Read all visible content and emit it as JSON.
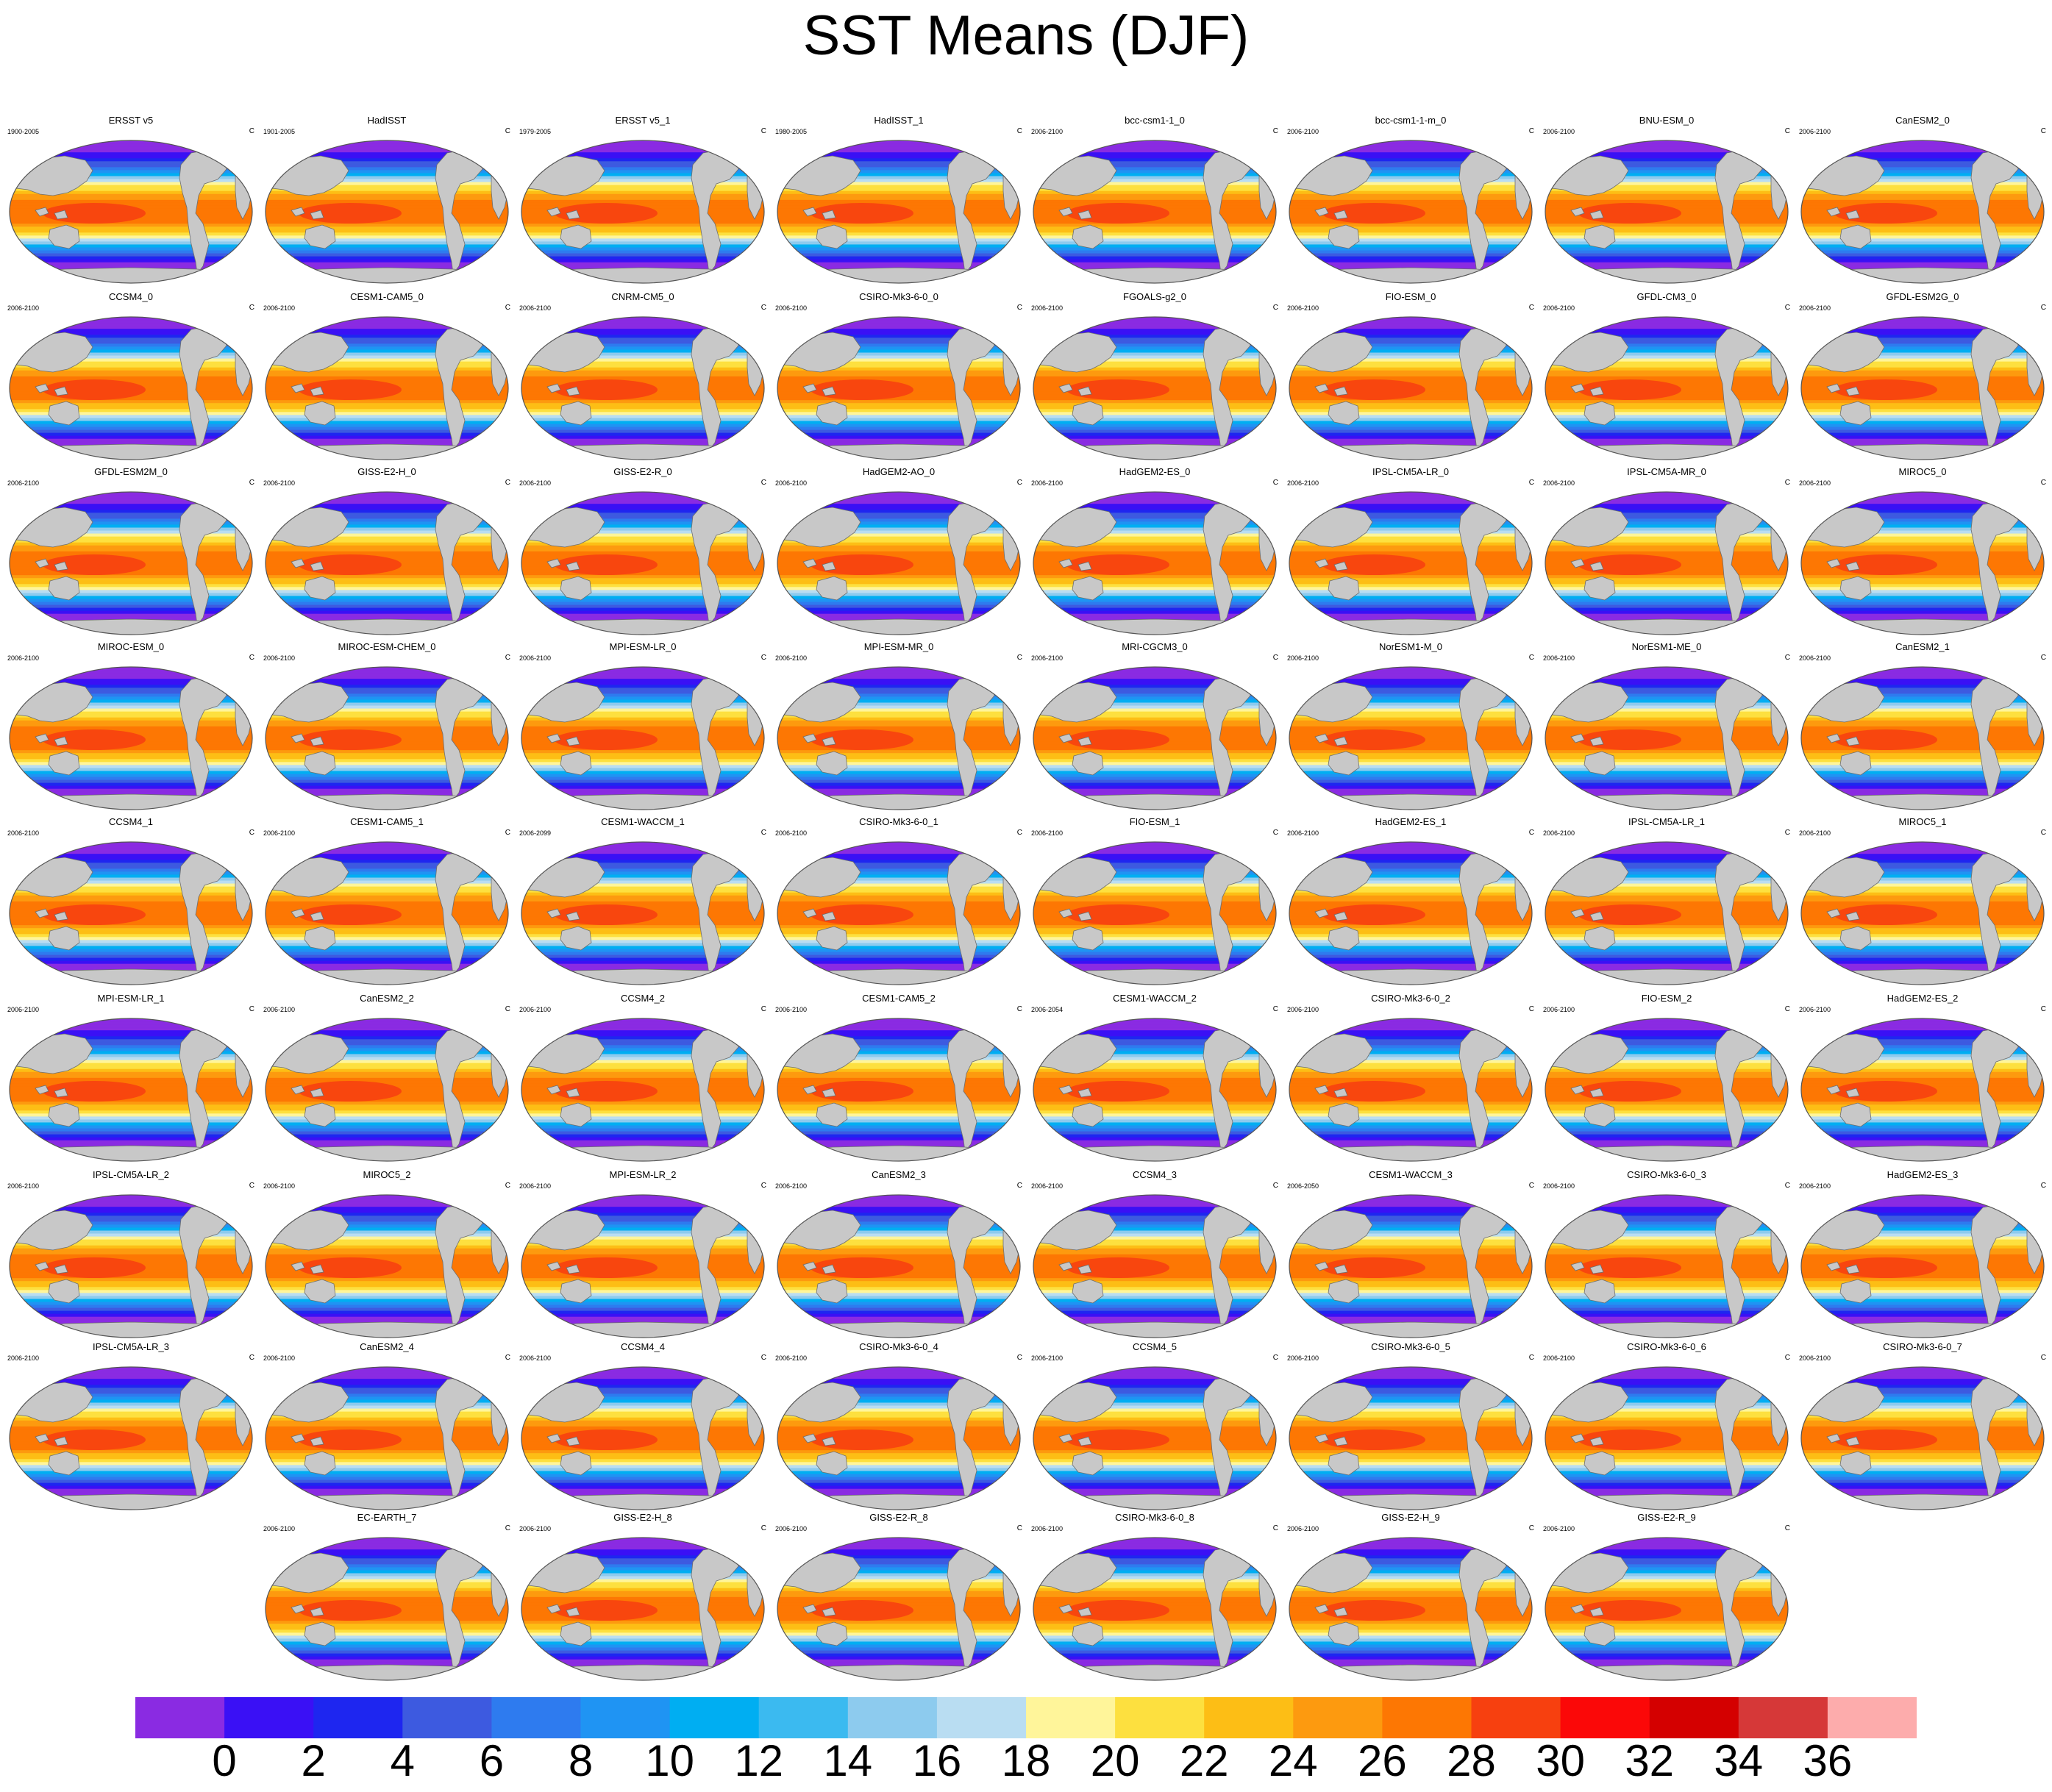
{
  "title": "SST Means (DJF)",
  "units": "C",
  "panels": [
    {
      "name": "ERSST v5",
      "period": "1900-2005"
    },
    {
      "name": "HadISST",
      "period": "1901-2005"
    },
    {
      "name": "ERSST v5_1",
      "period": "1979-2005"
    },
    {
      "name": "HadISST_1",
      "period": "1980-2005"
    },
    {
      "name": "bcc-csm1-1_0",
      "period": "2006-2100"
    },
    {
      "name": "bcc-csm1-1-m_0",
      "period": "2006-2100"
    },
    {
      "name": "BNU-ESM_0",
      "period": "2006-2100"
    },
    {
      "name": "CanESM2_0",
      "period": "2006-2100"
    },
    {
      "name": "CCSM4_0",
      "period": "2006-2100"
    },
    {
      "name": "CESM1-CAM5_0",
      "period": "2006-2100"
    },
    {
      "name": "CNRM-CM5_0",
      "period": "2006-2100"
    },
    {
      "name": "CSIRO-Mk3-6-0_0",
      "period": "2006-2100"
    },
    {
      "name": "FGOALS-g2_0",
      "period": "2006-2100"
    },
    {
      "name": "FIO-ESM_0",
      "period": "2006-2100"
    },
    {
      "name": "GFDL-CM3_0",
      "period": "2006-2100"
    },
    {
      "name": "GFDL-ESM2G_0",
      "period": "2006-2100"
    },
    {
      "name": "GFDL-ESM2M_0",
      "period": "2006-2100"
    },
    {
      "name": "GISS-E2-H_0",
      "period": "2006-2100"
    },
    {
      "name": "GISS-E2-R_0",
      "period": "2006-2100"
    },
    {
      "name": "HadGEM2-AO_0",
      "period": "2006-2100"
    },
    {
      "name": "HadGEM2-ES_0",
      "period": "2006-2100"
    },
    {
      "name": "IPSL-CM5A-LR_0",
      "period": "2006-2100"
    },
    {
      "name": "IPSL-CM5A-MR_0",
      "period": "2006-2100"
    },
    {
      "name": "MIROC5_0",
      "period": "2006-2100"
    },
    {
      "name": "MIROC-ESM_0",
      "period": "2006-2100"
    },
    {
      "name": "MIROC-ESM-CHEM_0",
      "period": "2006-2100"
    },
    {
      "name": "MPI-ESM-LR_0",
      "period": "2006-2100"
    },
    {
      "name": "MPI-ESM-MR_0",
      "period": "2006-2100"
    },
    {
      "name": "MRI-CGCM3_0",
      "period": "2006-2100"
    },
    {
      "name": "NorESM1-M_0",
      "period": "2006-2100"
    },
    {
      "name": "NorESM1-ME_0",
      "period": "2006-2100"
    },
    {
      "name": "CanESM2_1",
      "period": "2006-2100"
    },
    {
      "name": "CCSM4_1",
      "period": "2006-2100"
    },
    {
      "name": "CESM1-CAM5_1",
      "period": "2006-2100"
    },
    {
      "name": "CESM1-WACCM_1",
      "period": "2006-2099"
    },
    {
      "name": "CSIRO-Mk3-6-0_1",
      "period": "2006-2100"
    },
    {
      "name": "FIO-ESM_1",
      "period": "2006-2100"
    },
    {
      "name": "HadGEM2-ES_1",
      "period": "2006-2100"
    },
    {
      "name": "IPSL-CM5A-LR_1",
      "period": "2006-2100"
    },
    {
      "name": "MIROC5_1",
      "period": "2006-2100"
    },
    {
      "name": "MPI-ESM-LR_1",
      "period": "2006-2100"
    },
    {
      "name": "CanESM2_2",
      "period": "2006-2100"
    },
    {
      "name": "CCSM4_2",
      "period": "2006-2100"
    },
    {
      "name": "CESM1-CAM5_2",
      "period": "2006-2100"
    },
    {
      "name": "CESM1-WACCM_2",
      "period": "2006-2054"
    },
    {
      "name": "CSIRO-Mk3-6-0_2",
      "period": "2006-2100"
    },
    {
      "name": "FIO-ESM_2",
      "period": "2006-2100"
    },
    {
      "name": "HadGEM2-ES_2",
      "period": "2006-2100"
    },
    {
      "name": "IPSL-CM5A-LR_2",
      "period": "2006-2100"
    },
    {
      "name": "MIROC5_2",
      "period": "2006-2100"
    },
    {
      "name": "MPI-ESM-LR_2",
      "period": "2006-2100"
    },
    {
      "name": "CanESM2_3",
      "period": "2006-2100"
    },
    {
      "name": "CCSM4_3",
      "period": "2006-2100"
    },
    {
      "name": "CESM1-WACCM_3",
      "period": "2006-2050"
    },
    {
      "name": "CSIRO-Mk3-6-0_3",
      "period": "2006-2100"
    },
    {
      "name": "HadGEM2-ES_3",
      "period": "2006-2100"
    },
    {
      "name": "IPSL-CM5A-LR_3",
      "period": "2006-2100"
    },
    {
      "name": "CanESM2_4",
      "period": "2006-2100"
    },
    {
      "name": "CCSM4_4",
      "period": "2006-2100"
    },
    {
      "name": "CSIRO-Mk3-6-0_4",
      "period": "2006-2100"
    },
    {
      "name": "CCSM4_5",
      "period": "2006-2100"
    },
    {
      "name": "CSIRO-Mk3-6-0_5",
      "period": "2006-2100"
    },
    {
      "name": "CSIRO-Mk3-6-0_6",
      "period": "2006-2100"
    },
    {
      "name": "CSIRO-Mk3-6-0_7",
      "period": "2006-2100"
    },
    {
      "name": "EC-EARTH_7",
      "period": "2006-2100"
    },
    {
      "name": "GISS-E2-H_8",
      "period": "2006-2100"
    },
    {
      "name": "GISS-E2-R_8",
      "period": "2006-2100"
    },
    {
      "name": "CSIRO-Mk3-6-0_8",
      "period": "2006-2100"
    },
    {
      "name": "GISS-E2-H_9",
      "period": "2006-2100"
    },
    {
      "name": "GISS-E2-R_9",
      "period": "2006-2100"
    }
  ],
  "colors": {
    "land": "#c8c8c8",
    "coast": "#6e6e6e",
    "map_border": "#555555"
  },
  "chart_data": {
    "type": "heatmap",
    "title": "SST Means (DJF)",
    "projection": "Robinson, Pacific-centered",
    "panel_layout": "8 columns, last row 6 panels centered",
    "colorbar": {
      "orientation": "horizontal",
      "levels": [
        -1,
        0,
        1,
        2,
        3,
        4,
        5,
        6,
        7,
        8,
        9,
        10,
        11,
        12,
        13,
        14,
        15,
        16,
        17,
        18,
        19,
        20,
        21
      ],
      "tick_labels": [
        "0",
        "2",
        "4",
        "6",
        "8",
        "10",
        "12",
        "14",
        "16",
        "18",
        "20",
        "22",
        "24",
        "26",
        "28",
        "30",
        "32",
        "34",
        "36"
      ],
      "tick_values": [
        0,
        2,
        4,
        6,
        8,
        10,
        12,
        14,
        16,
        18,
        20,
        22,
        24,
        26,
        28,
        30,
        32,
        34,
        36
      ],
      "bin_edges": [
        0,
        2,
        4,
        6,
        8,
        10,
        12,
        14,
        16,
        18,
        20,
        22,
        24,
        26,
        28,
        30,
        32,
        34,
        36
      ],
      "colors": [
        "#8a2be2",
        "#3a10f5",
        "#1e26f0",
        "#3d5ae0",
        "#2e7bef",
        "#1f94f3",
        "#00aef2",
        "#3bbaf0",
        "#8dcbee",
        "#b9ddf2",
        "#fff59a",
        "#fde03f",
        "#fdbe15",
        "#fd9a0f",
        "#fd7703",
        "#f7400f",
        "#fb0808",
        "#d40000",
        "#d63838",
        "#fdacac"
      ]
    },
    "latitude_profile_degC": {
      "lat": [
        -80,
        -70,
        -60,
        -50,
        -40,
        -30,
        -20,
        -10,
        0,
        10,
        20,
        30,
        40,
        50,
        60,
        70,
        80
      ],
      "sst": [
        -1,
        -1,
        1,
        7,
        14,
        20,
        24,
        27,
        28,
        27,
        25,
        21,
        16,
        10,
        5,
        1,
        -1
      ]
    }
  }
}
